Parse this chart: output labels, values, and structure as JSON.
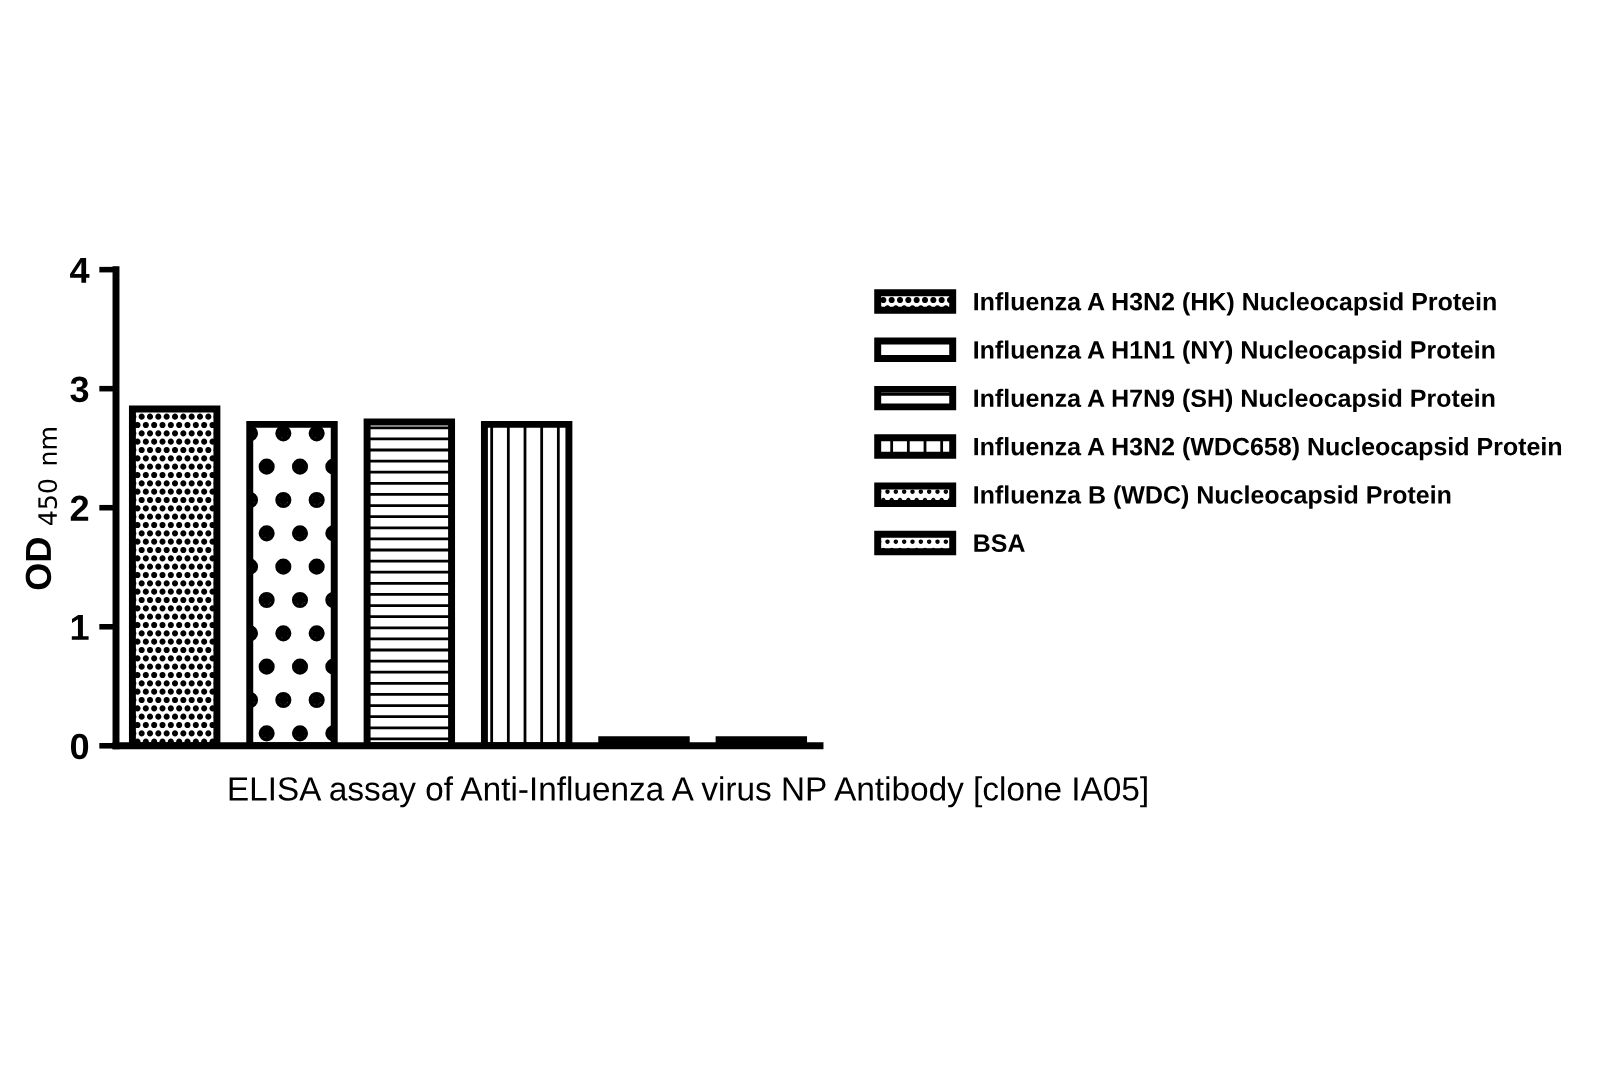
{
  "chart_data": {
    "type": "bar",
    "ylabel": "OD $_{450 nm}$",
    "categories": [
      null,
      null,
      null,
      null,
      null,
      null
    ],
    "series": [
      {
        "name": "Influenza A H3N2 (HK) Nucleocapsid Protein",
        "color": "#000000",
        "values": [
          2.83,
          null,
          null,
          null,
          null,
          null
        ]
      },
      {
        "name": "Influenza A H1N1 (NY) Nucleocapsid Protein",
        "color": "#000000",
        "values": [
          null,
          2.7,
          null,
          null,
          null,
          null
        ]
      },
      {
        "name": "Influenza A H7N9 (SH) Nucleocapsid Protein",
        "color": "#000000",
        "values": [
          null,
          null,
          2.72,
          null,
          null,
          null
        ]
      },
      {
        "name": "Influenza A H3N2 (WDC658) Nucleocapsid Protein",
        "color": "#000000",
        "values": [
          null,
          null,
          null,
          2.7,
          null,
          null
        ]
      },
      {
        "name": "Influenza B (WDC) Nucleocapsid Protein",
        "color": "#000000",
        "values": [
          null,
          null,
          null,
          null,
          0.05,
          null
        ]
      },
      {
        "name": "BSA",
        "color": "#000000",
        "values": [
          null,
          null,
          null,
          null,
          null,
          0.05
        ]
      }
    ],
    "ylim": [
      0,
      4
    ],
    "yticks": [
      0,
      1,
      2,
      3,
      4
    ],
    "grid": false,
    "legend": "right",
    "annotations": [
      "ELISA assay of Anti-Influenza A virus NP Antibody [clone IA05]"
    ]
  }
}
